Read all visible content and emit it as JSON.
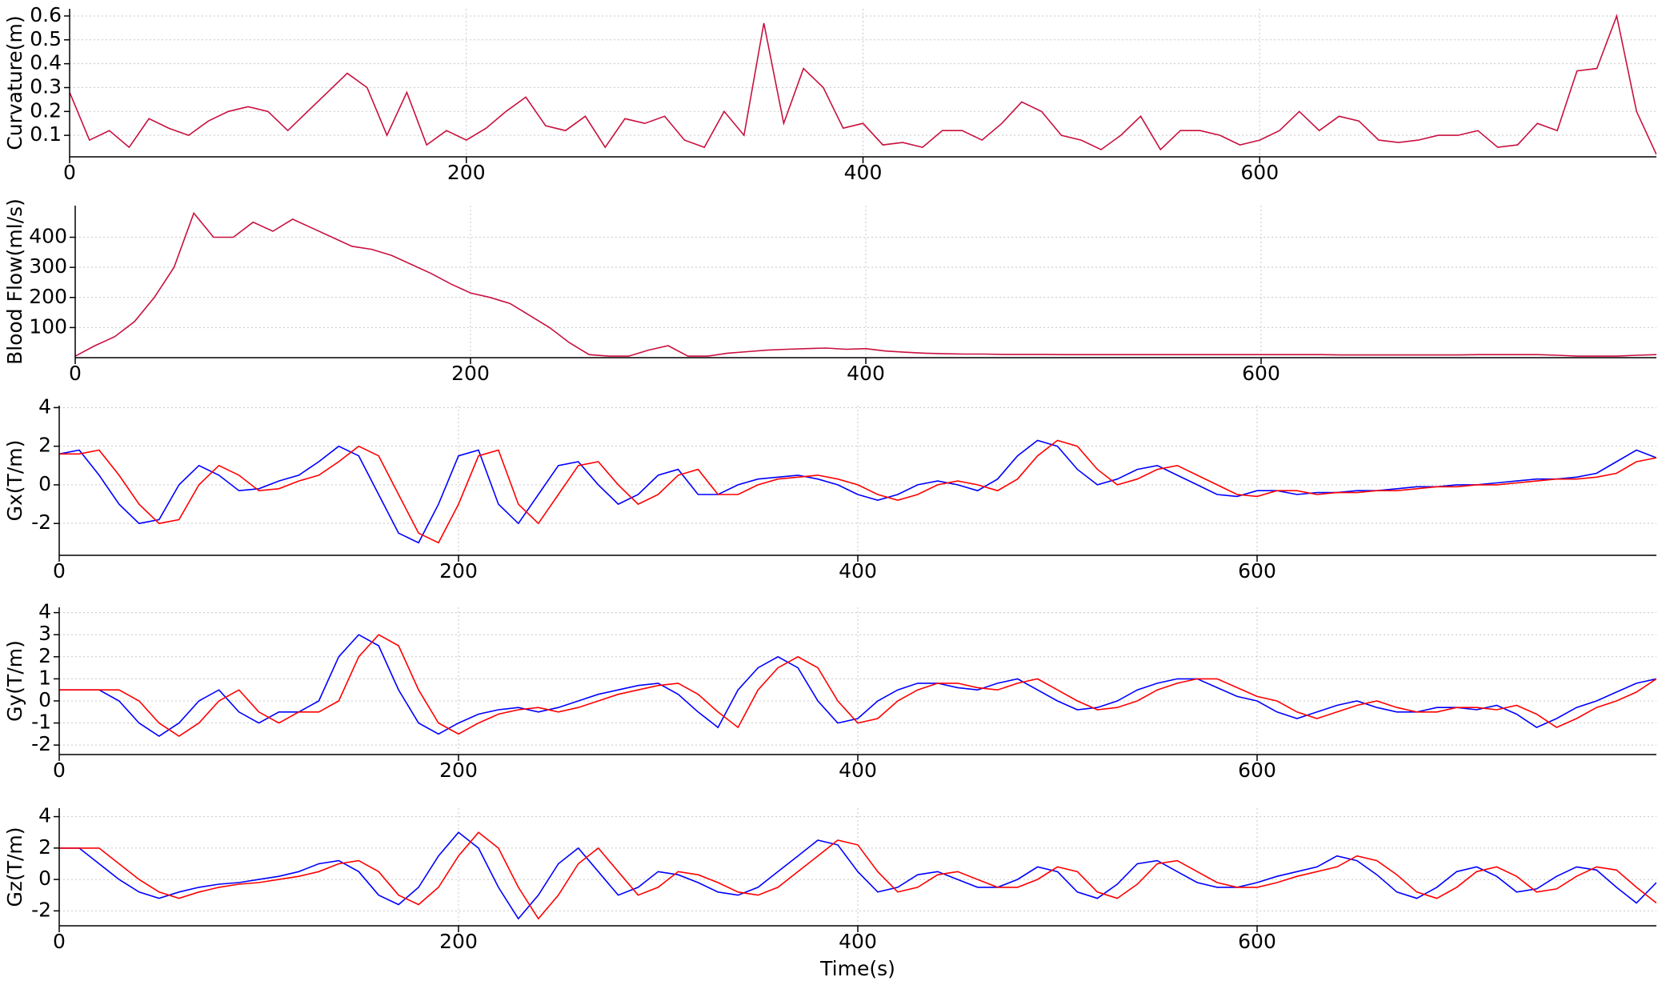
{
  "chart_data": [
    {
      "type": "line",
      "y_label": "Curvature(m)",
      "xlim": [
        0,
        800
      ],
      "ylim": [
        0.01,
        0.63
      ],
      "xticks": [
        0,
        200,
        400,
        600
      ],
      "yticks": [
        0.1,
        0.2,
        0.3,
        0.4,
        0.5,
        0.6
      ],
      "grid": true,
      "x": [
        0,
        10,
        20,
        30,
        40,
        50,
        60,
        70,
        80,
        90,
        100,
        110,
        120,
        130,
        140,
        150,
        160,
        170,
        180,
        190,
        200,
        210,
        220,
        230,
        240,
        250,
        260,
        270,
        280,
        290,
        300,
        310,
        320,
        330,
        340,
        350,
        360,
        370,
        380,
        390,
        400,
        410,
        420,
        430,
        440,
        450,
        460,
        470,
        480,
        490,
        500,
        510,
        520,
        530,
        540,
        550,
        560,
        570,
        580,
        590,
        600,
        610,
        620,
        630,
        640,
        650,
        660,
        670,
        680,
        690,
        700,
        710,
        720,
        730,
        740,
        750,
        760,
        770,
        780,
        790,
        800
      ],
      "series": [
        {
          "name": "Curvature",
          "color": "#c8103f",
          "values": [
            0.28,
            0.08,
            0.12,
            0.05,
            0.17,
            0.13,
            0.1,
            0.16,
            0.2,
            0.22,
            0.2,
            0.12,
            0.2,
            0.28,
            0.36,
            0.3,
            0.1,
            0.28,
            0.06,
            0.12,
            0.08,
            0.13,
            0.2,
            0.26,
            0.14,
            0.12,
            0.18,
            0.05,
            0.17,
            0.15,
            0.18,
            0.08,
            0.05,
            0.2,
            0.1,
            0.57,
            0.15,
            0.38,
            0.3,
            0.13,
            0.15,
            0.06,
            0.07,
            0.05,
            0.12,
            0.12,
            0.08,
            0.15,
            0.24,
            0.2,
            0.1,
            0.08,
            0.04,
            0.1,
            0.18,
            0.04,
            0.12,
            0.12,
            0.1,
            0.06,
            0.08,
            0.12,
            0.2,
            0.12,
            0.18,
            0.16,
            0.08,
            0.07,
            0.08,
            0.1,
            0.1,
            0.12,
            0.05,
            0.06,
            0.15,
            0.12,
            0.37,
            0.38,
            0.6,
            0.2,
            0.02
          ]
        }
      ]
    },
    {
      "type": "line",
      "y_label": "Blood Flow(ml/s)",
      "xlim": [
        0,
        800
      ],
      "ylim": [
        0,
        505
      ],
      "xticks": [
        0,
        200,
        400,
        600
      ],
      "yticks": [
        100,
        200,
        300,
        400
      ],
      "grid": true,
      "x": [
        0,
        10,
        20,
        30,
        40,
        50,
        60,
        70,
        80,
        90,
        100,
        110,
        120,
        130,
        140,
        150,
        160,
        170,
        180,
        190,
        200,
        210,
        220,
        230,
        240,
        250,
        260,
        270,
        280,
        290,
        300,
        310,
        320,
        330,
        340,
        350,
        360,
        370,
        380,
        390,
        400,
        410,
        420,
        430,
        440,
        450,
        460,
        470,
        480,
        490,
        500,
        510,
        520,
        530,
        540,
        550,
        560,
        570,
        580,
        590,
        600,
        610,
        620,
        630,
        640,
        650,
        660,
        670,
        680,
        690,
        700,
        710,
        720,
        730,
        740,
        750,
        760,
        770,
        780,
        790,
        800
      ],
      "series": [
        {
          "name": "Blood Flow",
          "color": "#c8103f",
          "values": [
            5,
            40,
            70,
            120,
            200,
            300,
            480,
            400,
            400,
            450,
            420,
            460,
            430,
            400,
            370,
            360,
            340,
            310,
            280,
            245,
            215,
            200,
            180,
            140,
            100,
            50,
            10,
            5,
            5,
            25,
            40,
            5,
            5,
            15,
            20,
            25,
            28,
            30,
            32,
            28,
            30,
            22,
            18,
            15,
            13,
            12,
            12,
            11,
            11,
            11,
            10,
            10,
            10,
            10,
            10,
            10,
            10,
            10,
            10,
            10,
            10,
            10,
            10,
            10,
            9,
            9,
            9,
            9,
            9,
            9,
            9,
            10,
            10,
            10,
            10,
            8,
            5,
            5,
            5,
            8,
            10
          ]
        }
      ]
    },
    {
      "type": "line",
      "y_label": "Gx(T/m)",
      "xlim": [
        0,
        800
      ],
      "ylim": [
        -3.65,
        4.1
      ],
      "xticks": [
        0,
        200,
        400,
        600
      ],
      "yticks": [
        -2,
        0,
        2,
        4
      ],
      "grid": true,
      "x": [
        0,
        10,
        20,
        30,
        40,
        50,
        60,
        70,
        80,
        90,
        100,
        110,
        120,
        130,
        140,
        150,
        160,
        170,
        180,
        190,
        200,
        210,
        220,
        230,
        240,
        250,
        260,
        270,
        280,
        290,
        300,
        310,
        320,
        330,
        340,
        350,
        360,
        370,
        380,
        390,
        400,
        410,
        420,
        430,
        440,
        450,
        460,
        470,
        480,
        490,
        500,
        510,
        520,
        530,
        540,
        550,
        560,
        570,
        580,
        590,
        600,
        610,
        620,
        630,
        640,
        650,
        660,
        670,
        680,
        690,
        700,
        710,
        720,
        730,
        740,
        750,
        760,
        770,
        780,
        790,
        800
      ],
      "series": [
        {
          "name": "Gx blue",
          "color": "#0000ff",
          "values": [
            1.6,
            1.8,
            0.5,
            -1.0,
            -2.0,
            -1.8,
            0.0,
            1.0,
            0.5,
            -0.3,
            -0.2,
            0.2,
            0.5,
            1.2,
            2.0,
            1.5,
            -0.5,
            -2.5,
            -3.0,
            -1.0,
            1.5,
            1.8,
            -1.0,
            -2.0,
            -0.5,
            1.0,
            1.2,
            0.0,
            -1.0,
            -0.5,
            0.5,
            0.8,
            -0.5,
            -0.5,
            0.0,
            0.3,
            0.4,
            0.5,
            0.3,
            0.0,
            -0.5,
            -0.8,
            -0.5,
            0.0,
            0.2,
            0.0,
            -0.3,
            0.3,
            1.5,
            2.3,
            2.0,
            0.8,
            0.0,
            0.3,
            0.8,
            1.0,
            0.5,
            0.0,
            -0.5,
            -0.6,
            -0.3,
            -0.3,
            -0.5,
            -0.4,
            -0.4,
            -0.3,
            -0.3,
            -0.2,
            -0.1,
            -0.1,
            0.0,
            0.0,
            0.1,
            0.2,
            0.3,
            0.3,
            0.4,
            0.6,
            1.2,
            1.8,
            1.4
          ]
        },
        {
          "name": "Gx red",
          "color": "#ff0000",
          "values": [
            1.6,
            1.6,
            1.8,
            0.5,
            -1.0,
            -2.0,
            -1.8,
            0.0,
            1.0,
            0.5,
            -0.3,
            -0.2,
            0.2,
            0.5,
            1.2,
            2.0,
            1.5,
            -0.5,
            -2.5,
            -3.0,
            -1.0,
            1.5,
            1.8,
            -1.0,
            -2.0,
            -0.5,
            1.0,
            1.2,
            0.0,
            -1.0,
            -0.5,
            0.5,
            0.8,
            -0.5,
            -0.5,
            0.0,
            0.3,
            0.4,
            0.5,
            0.3,
            0.0,
            -0.5,
            -0.8,
            -0.5,
            0.0,
            0.2,
            0.0,
            -0.3,
            0.3,
            1.5,
            2.3,
            2.0,
            0.8,
            0.0,
            0.3,
            0.8,
            1.0,
            0.5,
            0.0,
            -0.5,
            -0.6,
            -0.3,
            -0.3,
            -0.5,
            -0.4,
            -0.4,
            -0.3,
            -0.3,
            -0.2,
            -0.1,
            -0.1,
            0.0,
            0.0,
            0.1,
            0.2,
            0.3,
            0.3,
            0.4,
            0.6,
            1.2,
            1.4
          ]
        }
      ]
    },
    {
      "type": "line",
      "y_label": "Gy(T/m)",
      "xlim": [
        0,
        800
      ],
      "ylim": [
        -2.43,
        4.24
      ],
      "xticks": [
        0,
        200,
        400,
        600
      ],
      "yticks": [
        -2,
        -1,
        0,
        1,
        2,
        3,
        4
      ],
      "grid": true,
      "x": [
        0,
        10,
        20,
        30,
        40,
        50,
        60,
        70,
        80,
        90,
        100,
        110,
        120,
        130,
        140,
        150,
        160,
        170,
        180,
        190,
        200,
        210,
        220,
        230,
        240,
        250,
        260,
        270,
        280,
        290,
        300,
        310,
        320,
        330,
        340,
        350,
        360,
        370,
        380,
        390,
        400,
        410,
        420,
        430,
        440,
        450,
        460,
        470,
        480,
        490,
        500,
        510,
        520,
        530,
        540,
        550,
        560,
        570,
        580,
        590,
        600,
        610,
        620,
        630,
        640,
        650,
        660,
        670,
        680,
        690,
        700,
        710,
        720,
        730,
        740,
        750,
        760,
        770,
        780,
        790,
        800
      ],
      "series": [
        {
          "name": "Gy blue",
          "color": "#0000ff",
          "values": [
            0.5,
            0.5,
            0.5,
            0.0,
            -1.0,
            -1.6,
            -1.0,
            0.0,
            0.5,
            -0.5,
            -1.0,
            -0.5,
            -0.5,
            0.0,
            2.0,
            3.0,
            2.5,
            0.5,
            -1.0,
            -1.5,
            -1.0,
            -0.6,
            -0.4,
            -0.3,
            -0.5,
            -0.3,
            0.0,
            0.3,
            0.5,
            0.7,
            0.8,
            0.3,
            -0.5,
            -1.2,
            0.5,
            1.5,
            2.0,
            1.5,
            0.0,
            -1.0,
            -0.8,
            0.0,
            0.5,
            0.8,
            0.8,
            0.6,
            0.5,
            0.8,
            1.0,
            0.5,
            0.0,
            -0.4,
            -0.3,
            0.0,
            0.5,
            0.8,
            1.0,
            1.0,
            0.6,
            0.2,
            0.0,
            -0.5,
            -0.8,
            -0.5,
            -0.2,
            0.0,
            -0.3,
            -0.5,
            -0.5,
            -0.3,
            -0.3,
            -0.4,
            -0.2,
            -0.6,
            -1.2,
            -0.8,
            -0.3,
            0.0,
            0.4,
            0.8,
            1.0
          ]
        },
        {
          "name": "Gy red",
          "color": "#ff0000",
          "values": [
            0.5,
            0.5,
            0.5,
            0.5,
            0.0,
            -1.0,
            -1.6,
            -1.0,
            0.0,
            0.5,
            -0.5,
            -1.0,
            -0.5,
            -0.5,
            0.0,
            2.0,
            3.0,
            2.5,
            0.5,
            -1.0,
            -1.5,
            -1.0,
            -0.6,
            -0.4,
            -0.3,
            -0.5,
            -0.3,
            0.0,
            0.3,
            0.5,
            0.7,
            0.8,
            0.3,
            -0.5,
            -1.2,
            0.5,
            1.5,
            2.0,
            1.5,
            0.0,
            -1.0,
            -0.8,
            0.0,
            0.5,
            0.8,
            0.8,
            0.6,
            0.5,
            0.8,
            1.0,
            0.5,
            0.0,
            -0.4,
            -0.3,
            0.0,
            0.5,
            0.8,
            1.0,
            1.0,
            0.6,
            0.2,
            0.0,
            -0.5,
            -0.8,
            -0.5,
            -0.2,
            0.0,
            -0.3,
            -0.5,
            -0.5,
            -0.3,
            -0.3,
            -0.4,
            -0.2,
            -0.6,
            -1.2,
            -0.8,
            -0.3,
            0.0,
            0.4,
            1.0
          ]
        }
      ]
    },
    {
      "type": "line",
      "y_label": "Gz(T/m)",
      "x_label": "Time(s)",
      "xlim": [
        0,
        800
      ],
      "ylim": [
        -2.95,
        4.54
      ],
      "xticks": [
        0,
        200,
        400,
        600
      ],
      "yticks": [
        -2,
        0,
        2,
        4
      ],
      "grid": true,
      "x": [
        0,
        10,
        20,
        30,
        40,
        50,
        60,
        70,
        80,
        90,
        100,
        110,
        120,
        130,
        140,
        150,
        160,
        170,
        180,
        190,
        200,
        210,
        220,
        230,
        240,
        250,
        260,
        270,
        280,
        290,
        300,
        310,
        320,
        330,
        340,
        350,
        360,
        370,
        380,
        390,
        400,
        410,
        420,
        430,
        440,
        450,
        460,
        470,
        480,
        490,
        500,
        510,
        520,
        530,
        540,
        550,
        560,
        570,
        580,
        590,
        600,
        610,
        620,
        630,
        640,
        650,
        660,
        670,
        680,
        690,
        700,
        710,
        720,
        730,
        740,
        750,
        760,
        770,
        780,
        790,
        800
      ],
      "series": [
        {
          "name": "Gz blue",
          "color": "#0000ff",
          "values": [
            2.0,
            2.0,
            1.0,
            0.0,
            -0.8,
            -1.2,
            -0.8,
            -0.5,
            -0.3,
            -0.2,
            0.0,
            0.2,
            0.5,
            1.0,
            1.2,
            0.5,
            -1.0,
            -1.6,
            -0.5,
            1.5,
            3.0,
            2.0,
            -0.5,
            -2.5,
            -1.0,
            1.0,
            2.0,
            0.5,
            -1.0,
            -0.5,
            0.5,
            0.3,
            -0.2,
            -0.8,
            -1.0,
            -0.5,
            0.5,
            1.5,
            2.5,
            2.2,
            0.5,
            -0.8,
            -0.5,
            0.3,
            0.5,
            0.0,
            -0.5,
            -0.5,
            0.0,
            0.8,
            0.5,
            -0.8,
            -1.2,
            -0.3,
            1.0,
            1.2,
            0.5,
            -0.2,
            -0.5,
            -0.5,
            -0.2,
            0.2,
            0.5,
            0.8,
            1.5,
            1.2,
            0.3,
            -0.8,
            -1.2,
            -0.5,
            0.5,
            0.8,
            0.2,
            -0.8,
            -0.6,
            0.2,
            0.8,
            0.6,
            -0.5,
            -1.5,
            -0.2
          ]
        },
        {
          "name": "Gz red",
          "color": "#ff0000",
          "values": [
            2.0,
            2.0,
            2.0,
            1.0,
            0.0,
            -0.8,
            -1.2,
            -0.8,
            -0.5,
            -0.3,
            -0.2,
            0.0,
            0.2,
            0.5,
            1.0,
            1.2,
            0.5,
            -1.0,
            -1.6,
            -0.5,
            1.5,
            3.0,
            2.0,
            -0.5,
            -2.5,
            -1.0,
            1.0,
            2.0,
            0.5,
            -1.0,
            -0.5,
            0.5,
            0.3,
            -0.2,
            -0.8,
            -1.0,
            -0.5,
            0.5,
            1.5,
            2.5,
            2.2,
            0.5,
            -0.8,
            -0.5,
            0.3,
            0.5,
            0.0,
            -0.5,
            -0.5,
            0.0,
            0.8,
            0.5,
            -0.8,
            -1.2,
            -0.3,
            1.0,
            1.2,
            0.5,
            -0.2,
            -0.5,
            -0.5,
            -0.2,
            0.2,
            0.5,
            0.8,
            1.5,
            1.2,
            0.3,
            -0.8,
            -1.2,
            -0.5,
            0.5,
            0.8,
            0.2,
            -0.8,
            -0.6,
            0.2,
            0.8,
            0.6,
            -0.5,
            -1.5
          ]
        }
      ]
    }
  ]
}
